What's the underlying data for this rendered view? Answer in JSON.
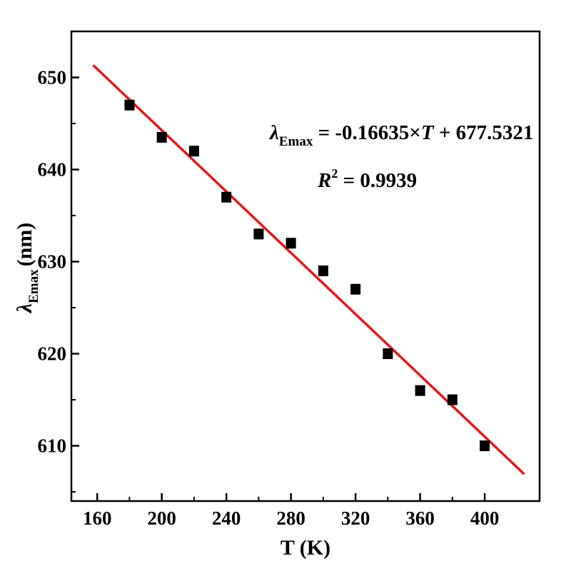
{
  "chart_data": {
    "type": "scatter",
    "x": [
      180,
      200,
      220,
      240,
      260,
      280,
      300,
      320,
      340,
      360,
      380,
      400
    ],
    "y": [
      647,
      643.5,
      642,
      637,
      633,
      632,
      629,
      627,
      620,
      616,
      615,
      610
    ],
    "xlabel": "T (K)",
    "ylabel_symbol": "λ",
    "ylabel_subscript": "Emax",
    "ylabel_unit": "(nm)",
    "xlim": [
      144,
      434
    ],
    "ylim": [
      604,
      655
    ],
    "xticks": [
      160,
      200,
      240,
      280,
      320,
      360,
      400
    ],
    "yticks": [
      610,
      620,
      630,
      640,
      650
    ],
    "fit": {
      "slope": -0.16635,
      "intercept": 677.5321,
      "x_range": [
        158,
        424
      ],
      "color": "#e31a1c"
    },
    "marker_color": "#000000",
    "grid": false,
    "annotations": {
      "equation_symbol": "λ",
      "equation_subscript": "Emax",
      "equation_rhs_part1": " = -0.16635×",
      "equation_var": "T",
      "equation_rhs_part2": " + 677.5321",
      "r2_symbol": "R",
      "r2_superscript": "2",
      "r2_value": " = 0.9939"
    }
  }
}
